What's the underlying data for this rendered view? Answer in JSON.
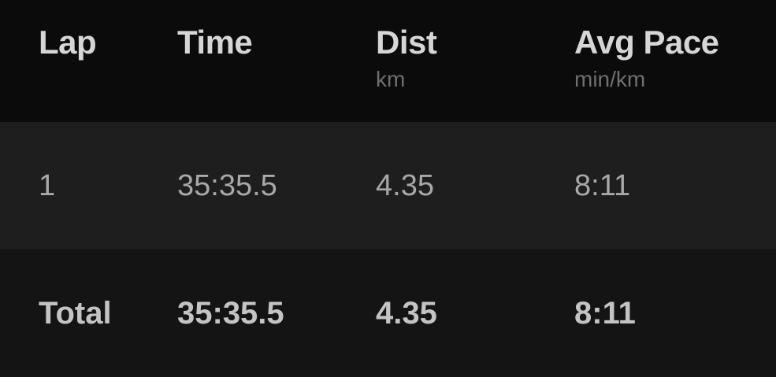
{
  "header": {
    "lap": "Lap",
    "time": "Time",
    "dist": "Dist",
    "dist_unit": "km",
    "avg_pace": "Avg Pace",
    "avg_pace_unit": "min/km"
  },
  "laps": [
    {
      "lap": "1",
      "time": "35:35.5",
      "dist": "4.35",
      "avg_pace": "8:11"
    }
  ],
  "total": {
    "label": "Total",
    "time": "35:35.5",
    "dist": "4.35",
    "avg_pace": "8:11"
  }
}
